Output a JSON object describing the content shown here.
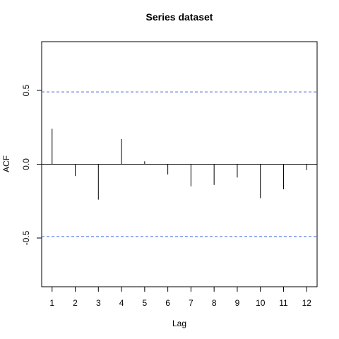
{
  "chart_data": {
    "type": "bar",
    "title": "Series  dataset",
    "xlabel": "Lag",
    "ylabel": "ACF",
    "xlim": [
      0.55,
      12.45
    ],
    "ylim": [
      -0.83,
      0.83
    ],
    "x_ticks": [
      1,
      2,
      3,
      4,
      5,
      6,
      7,
      8,
      9,
      10,
      11,
      12
    ],
    "y_ticks": [
      -0.5,
      0.0,
      0.5
    ],
    "y_tick_labels": [
      "-0.5",
      "0.0",
      "0.5"
    ],
    "x": [
      1,
      2,
      3,
      4,
      5,
      6,
      7,
      8,
      9,
      10,
      11,
      12
    ],
    "values": [
      0.24,
      -0.08,
      -0.24,
      0.17,
      0.02,
      -0.07,
      -0.15,
      -0.14,
      -0.09,
      -0.23,
      -0.17,
      -0.04
    ],
    "confidence_bounds": [
      -0.49,
      0.49
    ],
    "zero_line": true,
    "grid": false,
    "colors": {
      "bars": "#000000",
      "bounds": "#4169E1",
      "axis": "#000000"
    }
  }
}
